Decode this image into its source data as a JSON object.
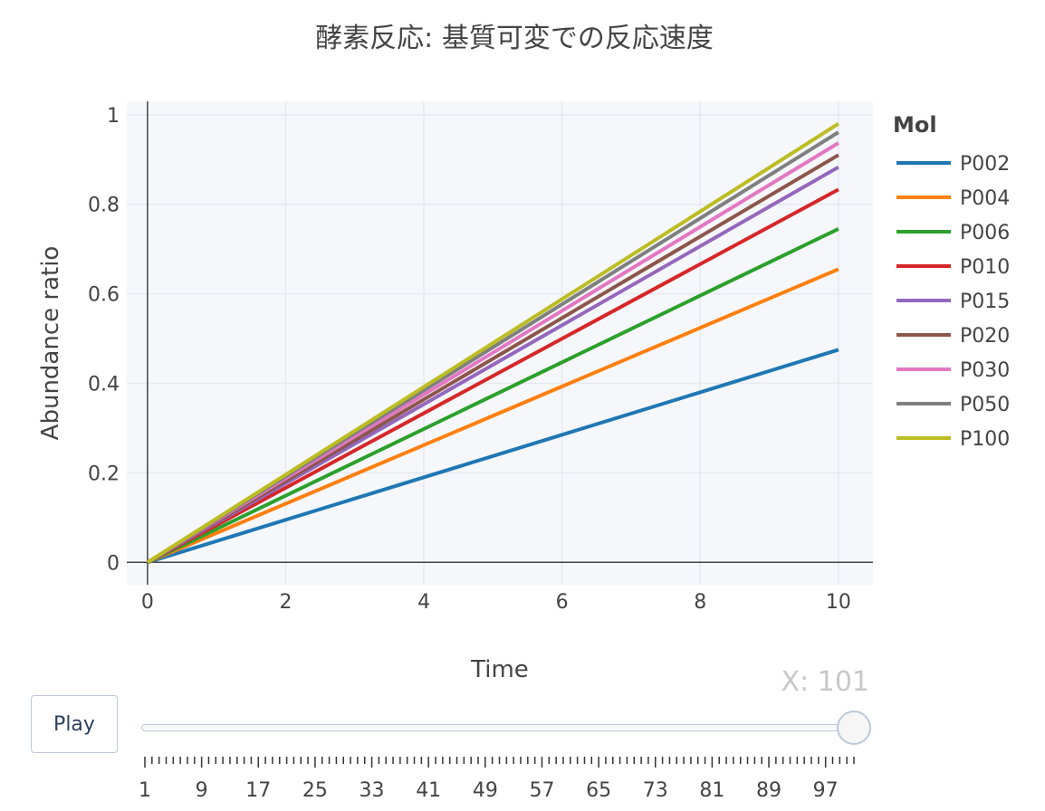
{
  "chart_data": {
    "type": "line",
    "title": "酵素反応: 基質可変での反応速度",
    "xlabel": "Time",
    "ylabel": "Abundance ratio",
    "xlim": [
      -0.3,
      10.5
    ],
    "ylim": [
      -0.05,
      1.03
    ],
    "xticks": [
      0,
      2,
      4,
      6,
      8,
      10
    ],
    "yticks": [
      0,
      0.2,
      0.4,
      0.6,
      0.8,
      1
    ],
    "ytick_labels": [
      "0",
      "0.2",
      "0.4",
      "0.6",
      "0.8",
      "1"
    ],
    "grid": true,
    "legend_title": "Mol",
    "legend_position": "right",
    "x": [
      0,
      10
    ],
    "series": [
      {
        "name": "P002",
        "color": "#1f77b4",
        "values": [
          0,
          0.475
        ]
      },
      {
        "name": "P004",
        "color": "#ff7f0e",
        "values": [
          0,
          0.655
        ]
      },
      {
        "name": "P006",
        "color": "#2ca02c",
        "values": [
          0,
          0.745
        ]
      },
      {
        "name": "P010",
        "color": "#d62728",
        "values": [
          0,
          0.833
        ]
      },
      {
        "name": "P015",
        "color": "#9467bd",
        "values": [
          0,
          0.883
        ]
      },
      {
        "name": "P020",
        "color": "#8c564b",
        "values": [
          0,
          0.91
        ]
      },
      {
        "name": "P030",
        "color": "#e377c2",
        "values": [
          0,
          0.937
        ]
      },
      {
        "name": "P050",
        "color": "#7f7f7f",
        "values": [
          0,
          0.961
        ]
      },
      {
        "name": "P100",
        "color": "#bcbd22",
        "values": [
          0,
          0.98
        ]
      }
    ]
  },
  "controls": {
    "play_label": "Play",
    "slider_current": "X: 101",
    "slider_min": 1,
    "slider_max": 101,
    "slider_value": 101,
    "slider_tick_labels": [
      "1",
      "9",
      "17",
      "25",
      "33",
      "41",
      "49",
      "57",
      "65",
      "73",
      "81",
      "89",
      "97"
    ]
  }
}
